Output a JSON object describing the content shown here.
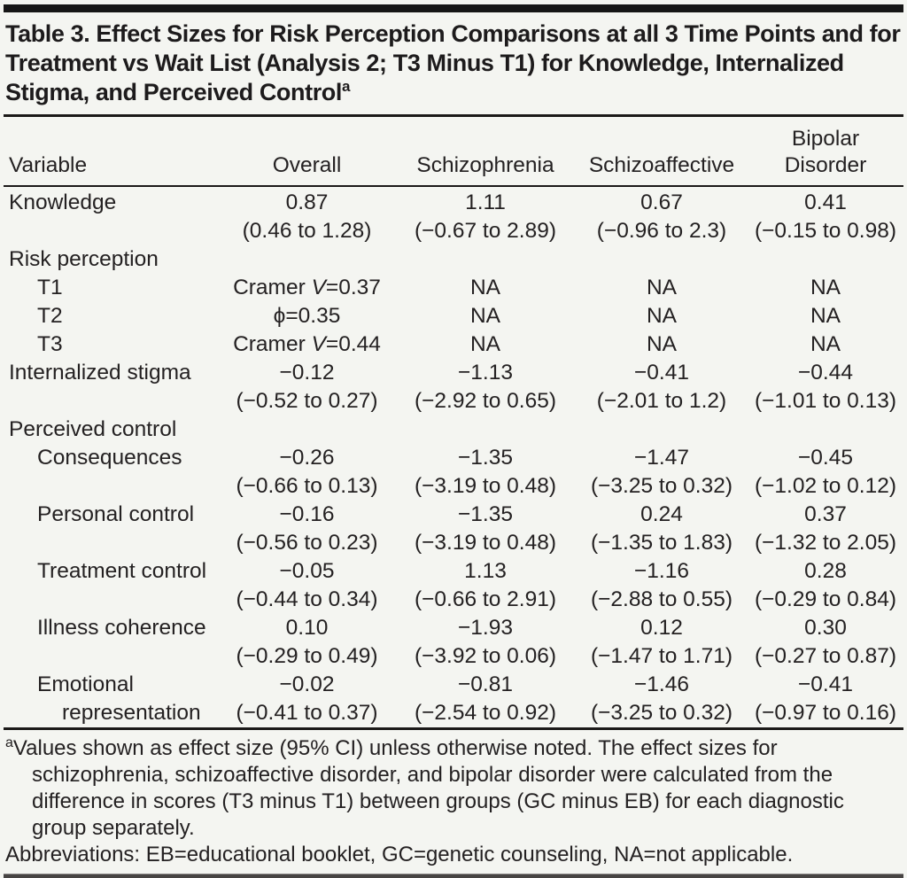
{
  "title": {
    "text": "Table 3. Effect Sizes for Risk Perception Comparisons at all 3 Time Points and for Treatment vs Wait List (Analysis 2; T3 Minus T1) for Knowledge, Internalized Stigma, and Perceived Control",
    "footnote_marker": "a"
  },
  "table": {
    "columns": [
      "Variable",
      "Overall",
      "Schizophrenia",
      "Schizoaffective",
      "Bipolar\nDisorder"
    ],
    "rows": [
      {
        "label": "Knowledge",
        "indent": 0,
        "cells": [
          {
            "v": "0.87",
            "ci": "(0.46 to 1.28)"
          },
          {
            "v": "1.11",
            "ci": "(−0.67 to 2.89)"
          },
          {
            "v": "0.67",
            "ci": "(−0.96 to 2.3)"
          },
          {
            "v": "0.41",
            "ci": "(−0.15 to 0.98)"
          }
        ]
      },
      {
        "label": "Risk perception",
        "indent": 0,
        "section": true,
        "cells": []
      },
      {
        "label": "T1",
        "indent": 1,
        "cells": [
          {
            "v_parts": [
              "Cramer ",
              {
                "italic": "V"
              },
              "=0.37"
            ]
          },
          {
            "v": "NA"
          },
          {
            "v": "NA"
          },
          {
            "v": "NA"
          }
        ]
      },
      {
        "label": "T2",
        "indent": 1,
        "cells": [
          {
            "v": "ϕ=0.35"
          },
          {
            "v": "NA"
          },
          {
            "v": "NA"
          },
          {
            "v": "NA"
          }
        ]
      },
      {
        "label": "T3",
        "indent": 1,
        "cells": [
          {
            "v_parts": [
              "Cramer ",
              {
                "italic": "V"
              },
              "=0.44"
            ]
          },
          {
            "v": "NA"
          },
          {
            "v": "NA"
          },
          {
            "v": "NA"
          }
        ]
      },
      {
        "label": "Internalized stigma",
        "indent": 0,
        "cells": [
          {
            "v": "−0.12",
            "ci": "(−0.52 to 0.27)"
          },
          {
            "v": "−1.13",
            "ci": "(−2.92 to 0.65)"
          },
          {
            "v": "−0.41",
            "ci": "(−2.01 to 1.2)"
          },
          {
            "v": "−0.44",
            "ci": "(−1.01 to 0.13)"
          }
        ]
      },
      {
        "label": "Perceived control",
        "indent": 0,
        "section": true,
        "cells": []
      },
      {
        "label": "Consequences",
        "indent": 1,
        "cells": [
          {
            "v": "−0.26",
            "ci": "(−0.66 to 0.13)"
          },
          {
            "v": "−1.35",
            "ci": "(−3.19 to 0.48)"
          },
          {
            "v": "−1.47",
            "ci": "(−3.25 to 0.32)"
          },
          {
            "v": "−0.45",
            "ci": "(−1.02 to 0.12)"
          }
        ]
      },
      {
        "label": "Personal control",
        "indent": 1,
        "cells": [
          {
            "v": "−0.16",
            "ci": "(−0.56 to 0.23)"
          },
          {
            "v": "−1.35",
            "ci": "(−3.19 to 0.48)"
          },
          {
            "v": "0.24",
            "ci": "(−1.35 to 1.83)"
          },
          {
            "v": "0.37",
            "ci": "(−1.32 to 2.05)"
          }
        ]
      },
      {
        "label": "Treatment control",
        "indent": 1,
        "cells": [
          {
            "v": "−0.05",
            "ci": "(−0.44 to 0.34)"
          },
          {
            "v": "1.13",
            "ci": "(−0.66 to 2.91)"
          },
          {
            "v": "−1.16",
            "ci": "(−2.88 to 0.55)"
          },
          {
            "v": "0.28",
            "ci": "(−0.29 to 0.84)"
          }
        ]
      },
      {
        "label": "Illness coherence",
        "indent": 1,
        "cells": [
          {
            "v": "0.10",
            "ci": "(−0.29 to 0.49)"
          },
          {
            "v": "−1.93",
            "ci": "(−3.92 to 0.06)"
          },
          {
            "v": "0.12",
            "ci": "(−1.47 to 1.71)"
          },
          {
            "v": "0.30",
            "ci": "(−0.27 to 0.87)"
          }
        ]
      },
      {
        "label": "Emotional",
        "label2": "representation",
        "indent": 1,
        "cells": [
          {
            "v": "−0.02",
            "ci": "(−0.41 to 0.37)"
          },
          {
            "v": "−0.81",
            "ci": "(−2.54 to 0.92)"
          },
          {
            "v": "−1.46",
            "ci": "(−3.25 to 0.32)"
          },
          {
            "v": "−0.41",
            "ci": "(−0.97 to 0.16)"
          }
        ]
      }
    ]
  },
  "footnotes": {
    "a": {
      "marker": "a",
      "text": "Values shown as effect size (95% CI) unless otherwise noted. The effect sizes for schizophrenia, schizoaffective disorder, and bipolar disorder were calculated from the difference in scores (T3 minus T1) between groups (GC minus EB) for each diagnostic group separately."
    },
    "abbreviations": "Abbreviations: EB=educational booklet, GC=genetic counseling, NA=not applicable."
  }
}
